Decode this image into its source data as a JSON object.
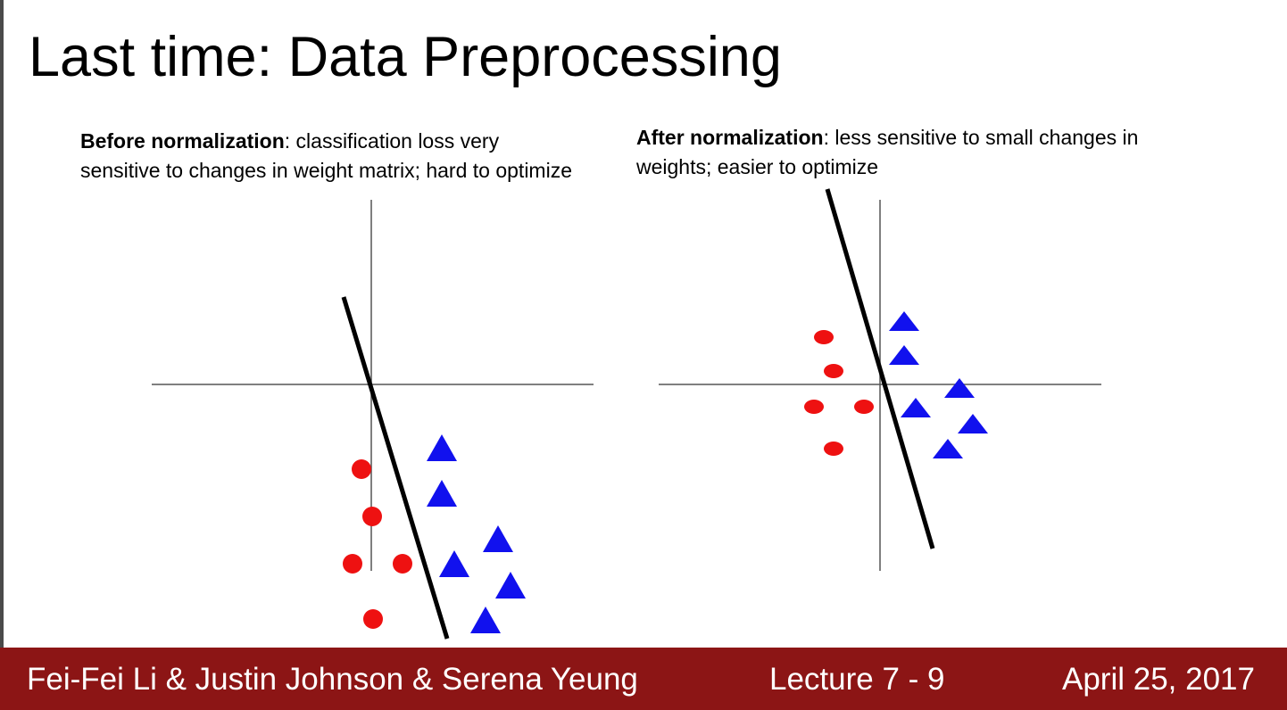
{
  "slide": {
    "title": "Last time: Data Preprocessing",
    "left_caption": {
      "bold": "Before normalization",
      "rest": ": classification loss very sensitive to changes in weight matrix; hard to optimize"
    },
    "right_caption": {
      "bold": "After normalization",
      "rest": ": less sensitive to small changes in weights; easier to optimize"
    }
  },
  "footer": {
    "authors": "Fei-Fei Li & Justin Johnson & Serena Yeung",
    "lecture": "Lecture 7 -   9",
    "date": "April 25, 2017"
  },
  "colors": {
    "footer_background": "#8c1515",
    "circle": "#ee1111",
    "triangle": "#1111ee",
    "axis": "#555555",
    "decision_line": "#000000"
  }
}
